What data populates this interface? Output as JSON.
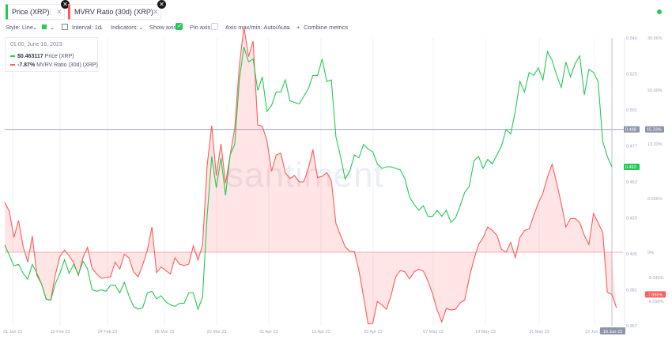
{
  "tabs": [
    {
      "label": "Price (XRP)",
      "color": "#26c953"
    },
    {
      "label": "MVRV Ratio (30d) (XRP)",
      "color": "#ff5b5b"
    }
  ],
  "toolbar": {
    "style_label": "Style: Line",
    "interval_label": "Interval: 1d",
    "indicators_label": "Indicators:",
    "show_axis_label": "Show axis",
    "pin_axis_label": "Pin axis",
    "axis_maxmin_label": "Axis max/min: Auto/Auto",
    "combine_label": "Combine metrics"
  },
  "tooltip": {
    "date": "01:00, June 16, 2023",
    "price_value": "$0.463117",
    "price_label": "Price (XRP)",
    "mvrv_value": "-7.87%",
    "mvrv_label": "MVRV Ratio (30d) (XRP)"
  },
  "chart_data": {
    "type": "line",
    "watermark": "santiment",
    "x_ticks": [
      "31 Jan 23",
      "12 Feb 23",
      "24 Feb 23",
      "08 Mar 23",
      "20 Mar 23",
      "01 Apr 23",
      "13 Apr 23",
      "25 Apr 23",
      "07 May 23",
      "19 May 23",
      "31 May 23",
      "12 Jun 23"
    ],
    "x_current_label": "16 Jun 23",
    "price_axis": {
      "ticks": [
        "0.549",
        "0.525",
        "0.501",
        "0.477",
        "0.453",
        "0.429",
        "0.405",
        "0.381",
        "0.357"
      ],
      "min": 0.357,
      "max": 0.549,
      "reference_label": "0.488",
      "reference_value": 0.488,
      "current_label": "0.463",
      "current_value": 0.463,
      "color": "#26c953"
    },
    "mvrv_axis": {
      "ticks": [
        "30.66%",
        "20.00%",
        "13.33%",
        "6.666%",
        "0%",
        "-6.049%",
        "-6.099%"
      ],
      "reference_label": "15.33%",
      "current_label": "-7.869%",
      "color": "#ff5b5b"
    },
    "series": [
      {
        "name": "Price (XRP)",
        "color": "#26c953",
        "values": [
          0.411,
          0.404,
          0.397,
          0.398,
          0.392,
          0.388,
          0.398,
          0.392,
          0.385,
          0.375,
          0.374,
          0.385,
          0.392,
          0.401,
          0.392,
          0.398,
          0.391,
          0.4,
          0.395,
          0.381,
          0.38,
          0.381,
          0.38,
          0.384,
          0.384,
          0.379,
          0.386,
          0.377,
          0.37,
          0.368,
          0.369,
          0.379,
          0.38,
          0.375,
          0.377,
          0.373,
          0.371,
          0.37,
          0.372,
          0.372,
          0.379,
          0.379,
          0.368,
          0.376,
          0.43,
          0.47,
          0.449,
          0.469,
          0.444,
          0.471,
          0.478,
          0.521,
          0.543,
          0.533,
          0.535,
          0.514,
          0.523,
          0.5,
          0.504,
          0.513,
          0.513,
          0.521,
          0.507,
          0.506,
          0.505,
          0.51,
          0.515,
          0.524,
          0.524,
          0.535,
          0.52,
          0.521,
          0.483,
          0.47,
          0.455,
          0.46,
          0.471,
          0.469,
          0.478,
          0.475,
          0.473,
          0.465,
          0.462,
          0.463,
          0.463,
          0.462,
          0.461,
          0.455,
          0.443,
          0.438,
          0.434,
          0.437,
          0.43,
          0.43,
          0.434,
          0.43,
          0.434,
          0.426,
          0.429,
          0.437,
          0.446,
          0.45,
          0.467,
          0.47,
          0.462,
          0.468,
          0.465,
          0.471,
          0.477,
          0.488,
          0.485,
          0.5,
          0.52,
          0.513,
          0.526,
          0.524,
          0.529,
          0.521,
          0.54,
          0.534,
          0.524,
          0.516,
          0.533,
          0.523,
          0.532,
          0.537,
          0.511,
          0.528,
          0.526,
          0.52,
          0.48,
          0.47,
          0.463
        ]
      },
      {
        "name": "MVRV Ratio (30d) (XRP)",
        "color": "#ff5b5b",
        "values": [
          7.1,
          5.8,
          2.1,
          4.5,
          0.8,
          -1.4,
          2.3,
          -3.3,
          -4.5,
          -6.7,
          -6.8,
          -3.2,
          -0.6,
          0.3,
          -0.5,
          -1.5,
          -3.3,
          -0.8,
          0.7,
          -2.3,
          -3.1,
          -3.7,
          -3.6,
          -3.5,
          -1.4,
          -2.4,
          -0.3,
          -0.8,
          -2.8,
          -3.5,
          -1.8,
          0.3,
          3.6,
          -2.9,
          -2.1,
          -2.6,
          -3.1,
          -0.8,
          -1.7,
          -1.9,
          -1.7,
          0.9,
          -1.1,
          1.0,
          12.3,
          18.0,
          10.9,
          15.4,
          9.8,
          13.8,
          17.6,
          26.4,
          32.0,
          27.8,
          30.0,
          18.1,
          17.9,
          15.9,
          11.5,
          13.8,
          14.1,
          11.3,
          10.5,
          10.9,
          10.0,
          10.0,
          11.9,
          14.6,
          10.6,
          10.8,
          11.3,
          10.2,
          4.1,
          2.4,
          0.8,
          0.1,
          0.1,
          -2.6,
          -6.3,
          -10.2,
          -10.1,
          -7.0,
          -7.5,
          -8.1,
          -6.1,
          -3.5,
          -2.6,
          -2.8,
          -3.8,
          -2.8,
          -2.4,
          -2.7,
          -4.1,
          -5.9,
          -8.2,
          -9.9,
          -8.0,
          -8.2,
          -8.1,
          -7.2,
          -6.8,
          -3.6,
          -1.0,
          1.1,
          2.1,
          3.6,
          3.1,
          2.4,
          0.4,
          0.0,
          1.4,
          -0.8,
          2.1,
          3.1,
          3.3,
          5.2,
          7.0,
          8.4,
          10.7,
          12.5,
          9.8,
          6.9,
          3.6,
          4.8,
          4.8,
          4.2,
          2.4,
          1.1,
          5.5,
          4.2,
          2.8,
          -5.7,
          -6.0,
          -7.9
        ]
      }
    ]
  }
}
